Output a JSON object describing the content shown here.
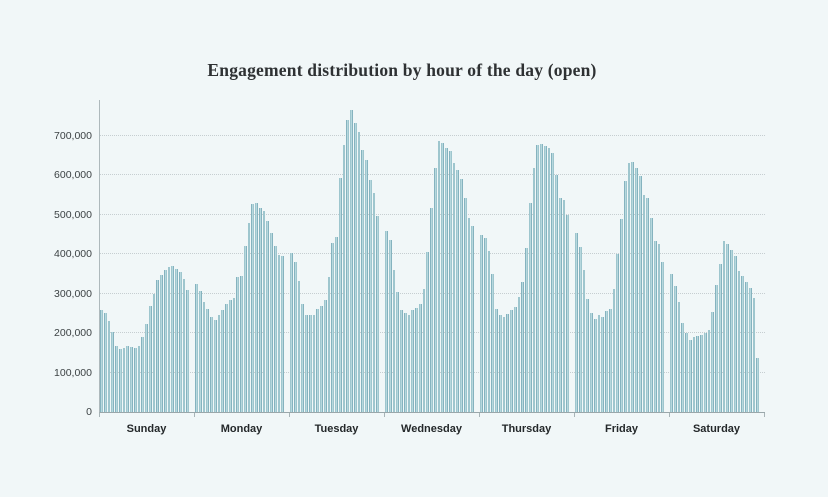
{
  "page": {
    "background": "#f1f7f8"
  },
  "chart_data": {
    "type": "bar",
    "title": "Engagement distribution by hour of the day (open)",
    "xlabel": "",
    "ylabel": "",
    "x_unit": "hour of day (0-23) grouped by weekday",
    "categories": [
      "Sunday",
      "Monday",
      "Tuesday",
      "Wednesday",
      "Thursday",
      "Friday",
      "Saturday"
    ],
    "y_ticks": [
      "0",
      "100,000",
      "200,000",
      "300,000",
      "400,000",
      "500,000",
      "600,000",
      "700,000"
    ],
    "ylim": [
      0,
      780000
    ],
    "grid": "horizontal-dotted",
    "legend": "none",
    "colors": {
      "bar_fill": "#b7d8de",
      "bar_edge": "#85b3bf",
      "gridline": "#c6ced1",
      "axis": "#9aa7aa",
      "title_text": "#2e3133",
      "tick_label": "#3c4244",
      "day_label": "#24282a",
      "background": "#f1f7f8"
    },
    "series": [
      {
        "name": "Sunday",
        "values": [
          260000,
          252000,
          232000,
          203000,
          168000,
          161000,
          163000,
          167000,
          165000,
          162000,
          167000,
          190000,
          224000,
          270000,
          300000,
          334000,
          348000,
          359000,
          368000,
          371000,
          362000,
          354000,
          337000,
          310000
        ]
      },
      {
        "name": "Monday",
        "values": [
          325000,
          308000,
          278000,
          262000,
          242000,
          233000,
          245000,
          258000,
          275000,
          283000,
          288000,
          342000,
          346000,
          422000,
          480000,
          527000,
          531000,
          518000,
          510000,
          485000,
          455000,
          422000,
          398000,
          397000
        ]
      },
      {
        "name": "Tuesday",
        "values": [
          404000,
          381000,
          333000,
          274000,
          245000,
          245000,
          246000,
          262000,
          270000,
          283000,
          342000,
          430000,
          443000,
          594000,
          678000,
          741000,
          765000,
          732000,
          711000,
          665000,
          640000,
          589000,
          556000,
          497000
        ]
      },
      {
        "name": "Wednesday",
        "values": [
          459000,
          436000,
          359000,
          304000,
          258000,
          251000,
          245000,
          258000,
          265000,
          275000,
          312000,
          405000,
          518000,
          620000,
          687000,
          683000,
          670000,
          662000,
          632000,
          615000,
          590000,
          544000,
          493000,
          472000
        ]
      },
      {
        "name": "Thursday",
        "values": [
          450000,
          442000,
          409000,
          350000,
          262000,
          245000,
          241000,
          249000,
          258000,
          266000,
          291000,
          329000,
          417000,
          531000,
          619000,
          678000,
          680000,
          674000,
          670000,
          657000,
          602000,
          543000,
          539000,
          501000
        ]
      },
      {
        "name": "Friday",
        "values": [
          455000,
          418000,
          359000,
          287000,
          250000,
          237000,
          245000,
          241000,
          257000,
          262000,
          312000,
          400000,
          489000,
          585000,
          632000,
          635000,
          620000,
          598000,
          551000,
          543000,
          493000,
          434000,
          426000,
          380000
        ]
      },
      {
        "name": "Saturday",
        "values": [
          351000,
          319000,
          280000,
          225000,
          200000,
          183000,
          190000,
          193000,
          196000,
          200000,
          208000,
          254000,
          322000,
          376000,
          433000,
          426000,
          410000,
          395000,
          357000,
          344000,
          331000,
          314000,
          289000,
          136000
        ]
      }
    ]
  }
}
